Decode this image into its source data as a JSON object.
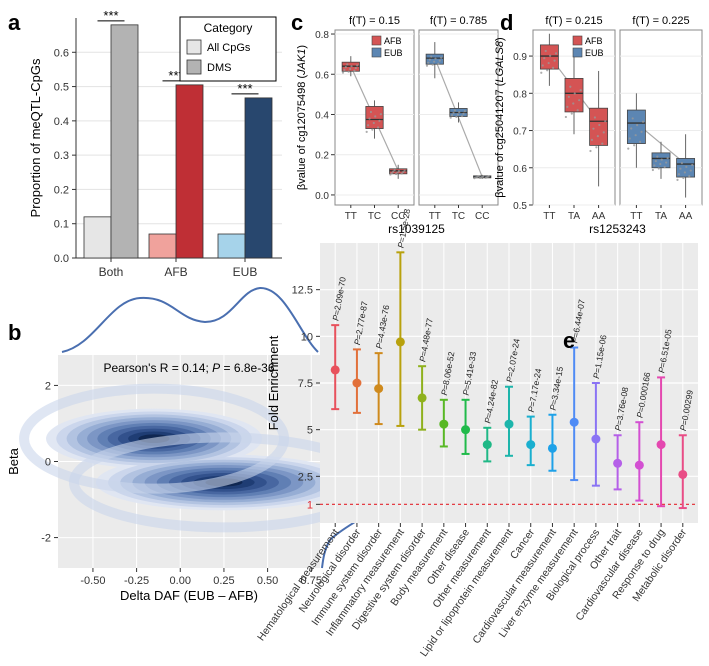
{
  "chart_data": [
    {
      "panel": "a",
      "type": "bar",
      "ylabel": "Proportion of meQTL-CpGs",
      "ylim": [
        0,
        0.7
      ],
      "yticks": [
        "0.0",
        "0.1",
        "0.2",
        "0.3",
        "0.4",
        "0.5",
        "0.6"
      ],
      "legend_title": "Category",
      "legend_items": [
        "All CpGs",
        "DMS"
      ],
      "categories": [
        "Both",
        "AFB",
        "EUB"
      ],
      "series": [
        {
          "name": "All CpGs",
          "values": [
            0.12,
            0.07,
            0.07
          ],
          "colors": [
            "#e6e6e6",
            "#f0a29c",
            "#a6d3ea"
          ]
        },
        {
          "name": "DMS",
          "values": [
            0.68,
            0.505,
            0.467
          ],
          "colors": [
            "#b3b3b3",
            "#bf2f35",
            "#28476e"
          ]
        }
      ],
      "significance": [
        "***",
        "***",
        "***"
      ]
    },
    {
      "panel": "b",
      "type": "contour",
      "annotation": "Pearson's R = 0.14; P = 6.8e-36",
      "annotation_prefix": "Pearson's R = 0.14; ",
      "annotation_p": "P",
      "annotation_suffix": " = 6.8e-36",
      "xlabel": "Delta DAF (EUB – AFB)",
      "ylabel": "Beta",
      "xticks": [
        "-0.50",
        "-0.25",
        "0.00",
        "0.25",
        "0.50",
        "0.75"
      ],
      "yticks": [
        "2",
        "0",
        "-2"
      ],
      "xlim": [
        -0.7,
        0.8
      ],
      "ylim": [
        -2.8,
        2.8
      ],
      "modes": [
        {
          "x": -0.15,
          "y": 0.6
        },
        {
          "x": 0.25,
          "y": -0.55
        }
      ]
    },
    {
      "panel": "c",
      "type": "boxplot",
      "ylabel_prefix": "βvalue of cg12075498 (",
      "ylabel_gene": "JAK1",
      "ylabel_suffix": ")",
      "xlabel": "rs1039125",
      "ylim": [
        -0.05,
        0.82
      ],
      "yticks": [
        "0.0",
        "0.2",
        "0.4",
        "0.6",
        "0.8"
      ],
      "legend_items": [
        "AFB",
        "EUB"
      ],
      "colors": {
        "AFB": "#d45454",
        "EUB": "#5c86b3"
      },
      "facets": [
        {
          "title": "f(T) = 0.15",
          "group": "AFB",
          "categories": [
            "TT",
            "TC",
            "CC"
          ],
          "boxes": [
            {
              "q1": 0.615,
              "median": 0.64,
              "q3": 0.66,
              "min": 0.59,
              "max": 0.69
            },
            {
              "q1": 0.33,
              "median": 0.375,
              "q3": 0.44,
              "min": 0.28,
              "max": 0.47
            },
            {
              "q1": 0.105,
              "median": 0.12,
              "q3": 0.13,
              "min": 0.08,
              "max": 0.15
            }
          ]
        },
        {
          "title": "f(T) = 0.785",
          "group": "EUB",
          "categories": [
            "TT",
            "TC",
            "CC"
          ],
          "boxes": [
            {
              "q1": 0.65,
              "median": 0.68,
              "q3": 0.7,
              "min": 0.58,
              "max": 0.76
            },
            {
              "q1": 0.39,
              "median": 0.41,
              "q3": 0.43,
              "min": 0.36,
              "max": 0.46
            },
            {
              "q1": 0.085,
              "median": 0.09,
              "q3": 0.095,
              "min": 0.08,
              "max": 0.1
            }
          ]
        }
      ]
    },
    {
      "panel": "d",
      "type": "boxplot",
      "ylabel_prefix": "βvalue of cg25041207 (",
      "ylabel_gene": "LGALS8",
      "ylabel_suffix": ")",
      "xlabel": "rs1253243",
      "ylim": [
        0.5,
        0.97
      ],
      "yticks": [
        "0.5",
        "0.6",
        "0.7",
        "0.8",
        "0.9"
      ],
      "legend_items": [
        "AFB",
        "EUB"
      ],
      "colors": {
        "AFB": "#d45454",
        "EUB": "#5c86b3"
      },
      "facets": [
        {
          "title": "f(T) = 0.215",
          "group": "AFB",
          "categories": [
            "TT",
            "TA",
            "AA"
          ],
          "boxes": [
            {
              "q1": 0.865,
              "median": 0.9,
              "q3": 0.93,
              "min": 0.82,
              "max": 0.96
            },
            {
              "q1": 0.75,
              "median": 0.8,
              "q3": 0.84,
              "min": 0.69,
              "max": 0.91
            },
            {
              "q1": 0.66,
              "median": 0.725,
              "q3": 0.76,
              "min": 0.55,
              "max": 0.86
            }
          ]
        },
        {
          "title": "f(T) = 0.225",
          "group": "EUB",
          "categories": [
            "TT",
            "TA",
            "AA"
          ],
          "boxes": [
            {
              "q1": 0.665,
              "median": 0.72,
              "q3": 0.755,
              "min": 0.6,
              "max": 0.8
            },
            {
              "q1": 0.6,
              "median": 0.625,
              "q3": 0.64,
              "min": 0.57,
              "max": 0.67
            },
            {
              "q1": 0.575,
              "median": 0.61,
              "q3": 0.625,
              "min": 0.52,
              "max": 0.69
            }
          ]
        }
      ]
    },
    {
      "panel": "e",
      "type": "errorbar",
      "ylabel": "Fold Enrichment",
      "ylim": [
        0,
        15
      ],
      "yticks": [
        "1",
        "2.5",
        "5",
        "7.5",
        "10",
        "12.5"
      ],
      "reference_line": 1,
      "categories": [
        "Hematological measurement",
        "Neurological disorder",
        "Immune system disorder",
        "Inflammatory measurement",
        "Digestive system disorder",
        "Body measurement",
        "Other disease",
        "Other measurement",
        "Lipid or lipoprotein measurement",
        "Cancer",
        "Cardiovascular measurement",
        "Liver enzyme measurement",
        "Biological process",
        "Other trait",
        "Cardiovascular disease",
        "Response to drug",
        "Metabolic disorder"
      ],
      "values": [
        8.2,
        7.5,
        7.2,
        9.7,
        6.7,
        5.3,
        5.0,
        4.2,
        5.3,
        4.2,
        4.0,
        5.4,
        4.5,
        3.2,
        3.1,
        4.2,
        2.6
      ],
      "lower": [
        6.1,
        5.9,
        5.3,
        5.2,
        5.0,
        4.1,
        3.7,
        3.3,
        3.6,
        3.1,
        2.8,
        2.3,
        2.0,
        1.8,
        1.2,
        0.9,
        0.8
      ],
      "upper": [
        10.6,
        9.3,
        9.1,
        14.5,
        8.4,
        6.6,
        6.6,
        5.1,
        7.3,
        5.7,
        5.8,
        9.4,
        7.5,
        4.7,
        5.4,
        7.8,
        4.7
      ],
      "pvalues": [
        "=2.09e-70",
        "=2.77e-87",
        "=4.43e-76",
        "=1.5e-28",
        "=4.48e-77",
        "=8.06e-52",
        "=5.41e-33",
        "=4.24e-82",
        "=2.07e-24",
        "=7.17e-24",
        "=3.34e-15",
        "=6.44e-07",
        "=1.15e-06",
        "=3.76e-08",
        "=0.000166",
        "=6.51e-05",
        "=0.00299"
      ],
      "p_label": "P",
      "colors": [
        "#e8515c",
        "#e2703a",
        "#cf8a1d",
        "#b8a10d",
        "#8fb11d",
        "#58b824",
        "#20ba4a",
        "#1fb886",
        "#1db5ab",
        "#1aafcf",
        "#1ea1e8",
        "#4f8bf5",
        "#8a73f4",
        "#b55fe8",
        "#d350d2",
        "#e448b0",
        "#e94d86"
      ]
    }
  ],
  "labels": {
    "a": "a",
    "b": "b",
    "c": "c",
    "d": "d",
    "e": "e"
  }
}
